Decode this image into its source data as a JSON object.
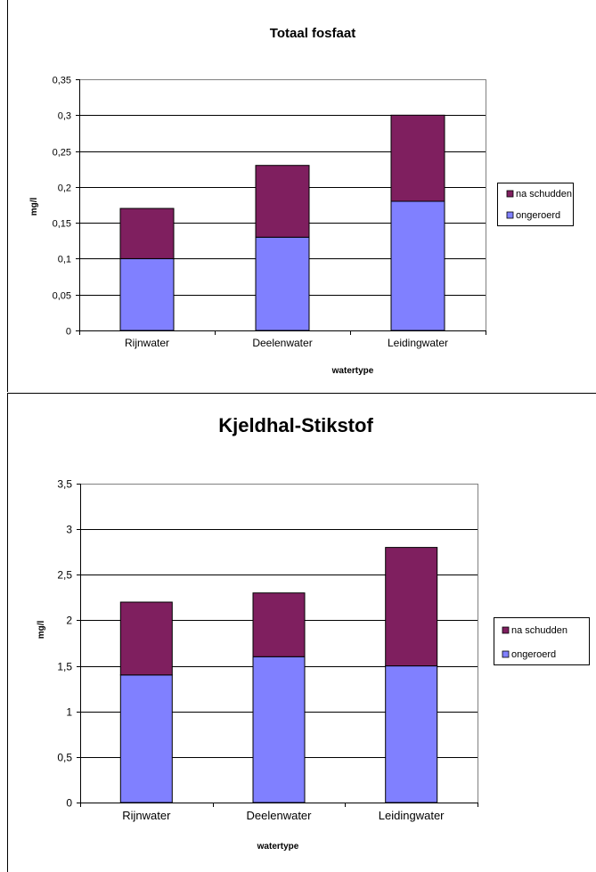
{
  "chart_data": [
    {
      "type": "bar",
      "stacked": true,
      "title": "Totaal fosfaat",
      "xlabel": "watertype",
      "ylabel": "mg/l",
      "categories": [
        "Rijnwater",
        "Deelenwater",
        "Leidingwater"
      ],
      "series": [
        {
          "name": "ongeroerd",
          "values": [
            0.1,
            0.13,
            0.18
          ],
          "color": "#8080ff"
        },
        {
          "name": "na schudden",
          "values": [
            0.07,
            0.1,
            0.12
          ],
          "color": "#7f1f5f"
        }
      ],
      "ylim": [
        0,
        0.35
      ],
      "yticks": [
        "0",
        "0,05",
        "0,1",
        "0,15",
        "0,2",
        "0,25",
        "0,3",
        "0,35"
      ],
      "grid": true,
      "legend_position": "right",
      "legend": [
        "na schudden",
        "ongeroerd"
      ]
    },
    {
      "type": "bar",
      "stacked": true,
      "title": "Kjeldhal-Stikstof",
      "xlabel": "watertype",
      "ylabel": "mg/l",
      "categories": [
        "Rijnwater",
        "Deelenwater",
        "Leidingwater"
      ],
      "series": [
        {
          "name": "ongeroerd",
          "values": [
            1.4,
            1.6,
            1.5
          ],
          "color": "#8080ff"
        },
        {
          "name": "na schudden",
          "values": [
            0.8,
            0.7,
            1.3
          ],
          "color": "#7f1f5f"
        }
      ],
      "ylim": [
        0,
        3.5
      ],
      "yticks": [
        "0",
        "0,5",
        "1",
        "1,5",
        "2",
        "2,5",
        "3",
        "3,5"
      ],
      "grid": true,
      "legend_position": "right",
      "legend": [
        "na schudden",
        "ongeroerd"
      ]
    }
  ]
}
